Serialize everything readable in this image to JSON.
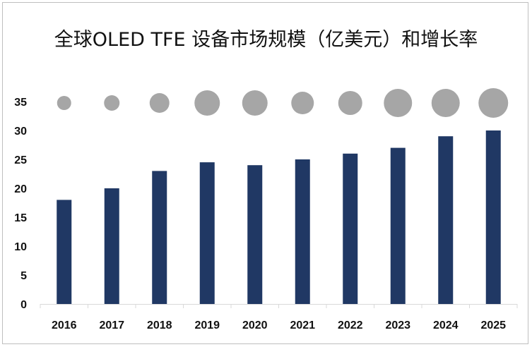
{
  "chart_data": {
    "type": "bar",
    "title": "全球OLED TFE 设备市场规模（亿美元）和增长率",
    "categories": [
      "2016",
      "2017",
      "2018",
      "2019",
      "2020",
      "2021",
      "2022",
      "2023",
      "2024",
      "2025"
    ],
    "series": [
      {
        "name": "市场规模（亿美元）",
        "type": "bar",
        "color": "#203864",
        "values": [
          18,
          20,
          23,
          24.5,
          24,
          25,
          26,
          27,
          29,
          30
        ]
      },
      {
        "name": "增长率",
        "type": "bubble",
        "color": "#a6a6a6",
        "y_position": 35,
        "relative_size": [
          10,
          11,
          14,
          18,
          18,
          16,
          17,
          20,
          20,
          21
        ]
      }
    ],
    "xlabel": "",
    "ylabel": "",
    "ylim": [
      0,
      35
    ],
    "yticks": [
      0,
      5,
      10,
      15,
      20,
      25,
      30,
      35
    ],
    "grid": false,
    "legend": null
  }
}
